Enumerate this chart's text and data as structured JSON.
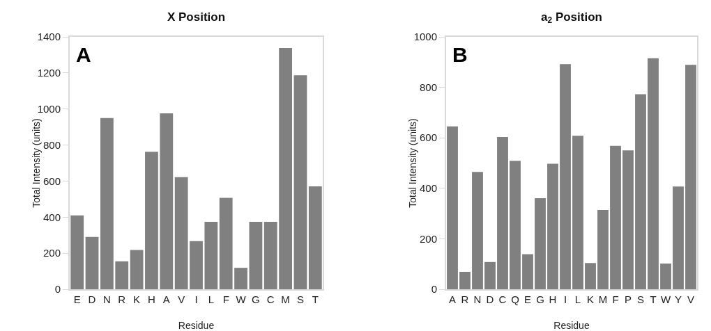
{
  "chart_data": [
    {
      "type": "bar",
      "title": "X Position",
      "xlabel": "Residue",
      "ylabel": "Total Intensity (units)",
      "annotations": [
        "A"
      ],
      "categories": [
        "E",
        "D",
        "N",
        "R",
        "K",
        "H",
        "A",
        "V",
        "I",
        "L",
        "F",
        "W",
        "G",
        "C",
        "M",
        "S",
        "T"
      ],
      "values": [
        410,
        290,
        950,
        155,
        218,
        763,
        976,
        622,
        267,
        374,
        507,
        119,
        374,
        374,
        1338,
        1187,
        571
      ],
      "color": "#808080",
      "ylim": [
        0,
        1400
      ],
      "yticks": [
        0,
        200,
        400,
        600,
        800,
        1000,
        1200,
        1400
      ],
      "grid": false,
      "legend": false
    },
    {
      "type": "bar",
      "title": "a$_{2}$ Position",
      "xlabel": "Residue",
      "ylabel": "Total Intensity (units)",
      "annotations": [
        "B"
      ],
      "categories": [
        "A",
        "R",
        "N",
        "D",
        "C",
        "Q",
        "E",
        "G",
        "H",
        "I",
        "L",
        "K",
        "M",
        "F",
        "P",
        "S",
        "T",
        "W",
        "Y",
        "V"
      ],
      "values": [
        645,
        69,
        465,
        108,
        603,
        509,
        139,
        361,
        497,
        892,
        608,
        104,
        314,
        568,
        550,
        773,
        915,
        102,
        407,
        889
      ],
      "color": "#808080",
      "ylim": [
        0,
        1000
      ],
      "yticks": [
        0,
        200,
        400,
        600,
        800,
        1000
      ],
      "grid": false,
      "legend": false
    }
  ]
}
